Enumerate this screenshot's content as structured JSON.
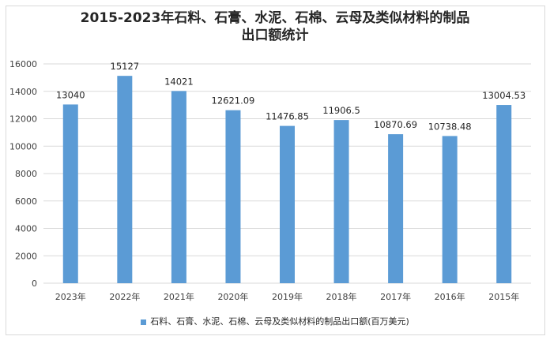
{
  "chart_data": {
    "type": "bar",
    "title_line1": "2015-2023年石料、石膏、水泥、石棉、云母及类似材料的制品",
    "title_line2": "出口额统计",
    "categories": [
      "2023年",
      "2022年",
      "2021年",
      "2020年",
      "2019年",
      "2018年",
      "2017年",
      "2016年",
      "2015年"
    ],
    "series": [
      {
        "name": "石料、石膏、水泥、石棉、云母及类似材料的制品出口额(百万美元)",
        "values": [
          13040,
          15127,
          14021,
          12621.09,
          11476.85,
          11906.5,
          10870.69,
          10738.48,
          13004.53
        ],
        "color": "#5b9bd5"
      }
    ],
    "data_labels": [
      "13040",
      "15127",
      "14021",
      "12621.09",
      "11476.85",
      "11906.5",
      "10870.69",
      "10738.48",
      "13004.53"
    ],
    "yticks": [
      "0",
      "2000",
      "4000",
      "6000",
      "8000",
      "10000",
      "12000",
      "14000",
      "16000"
    ],
    "ylim": [
      0,
      16000
    ],
    "grid": true,
    "legend_position": "bottom",
    "xlabel": "",
    "ylabel": ""
  }
}
